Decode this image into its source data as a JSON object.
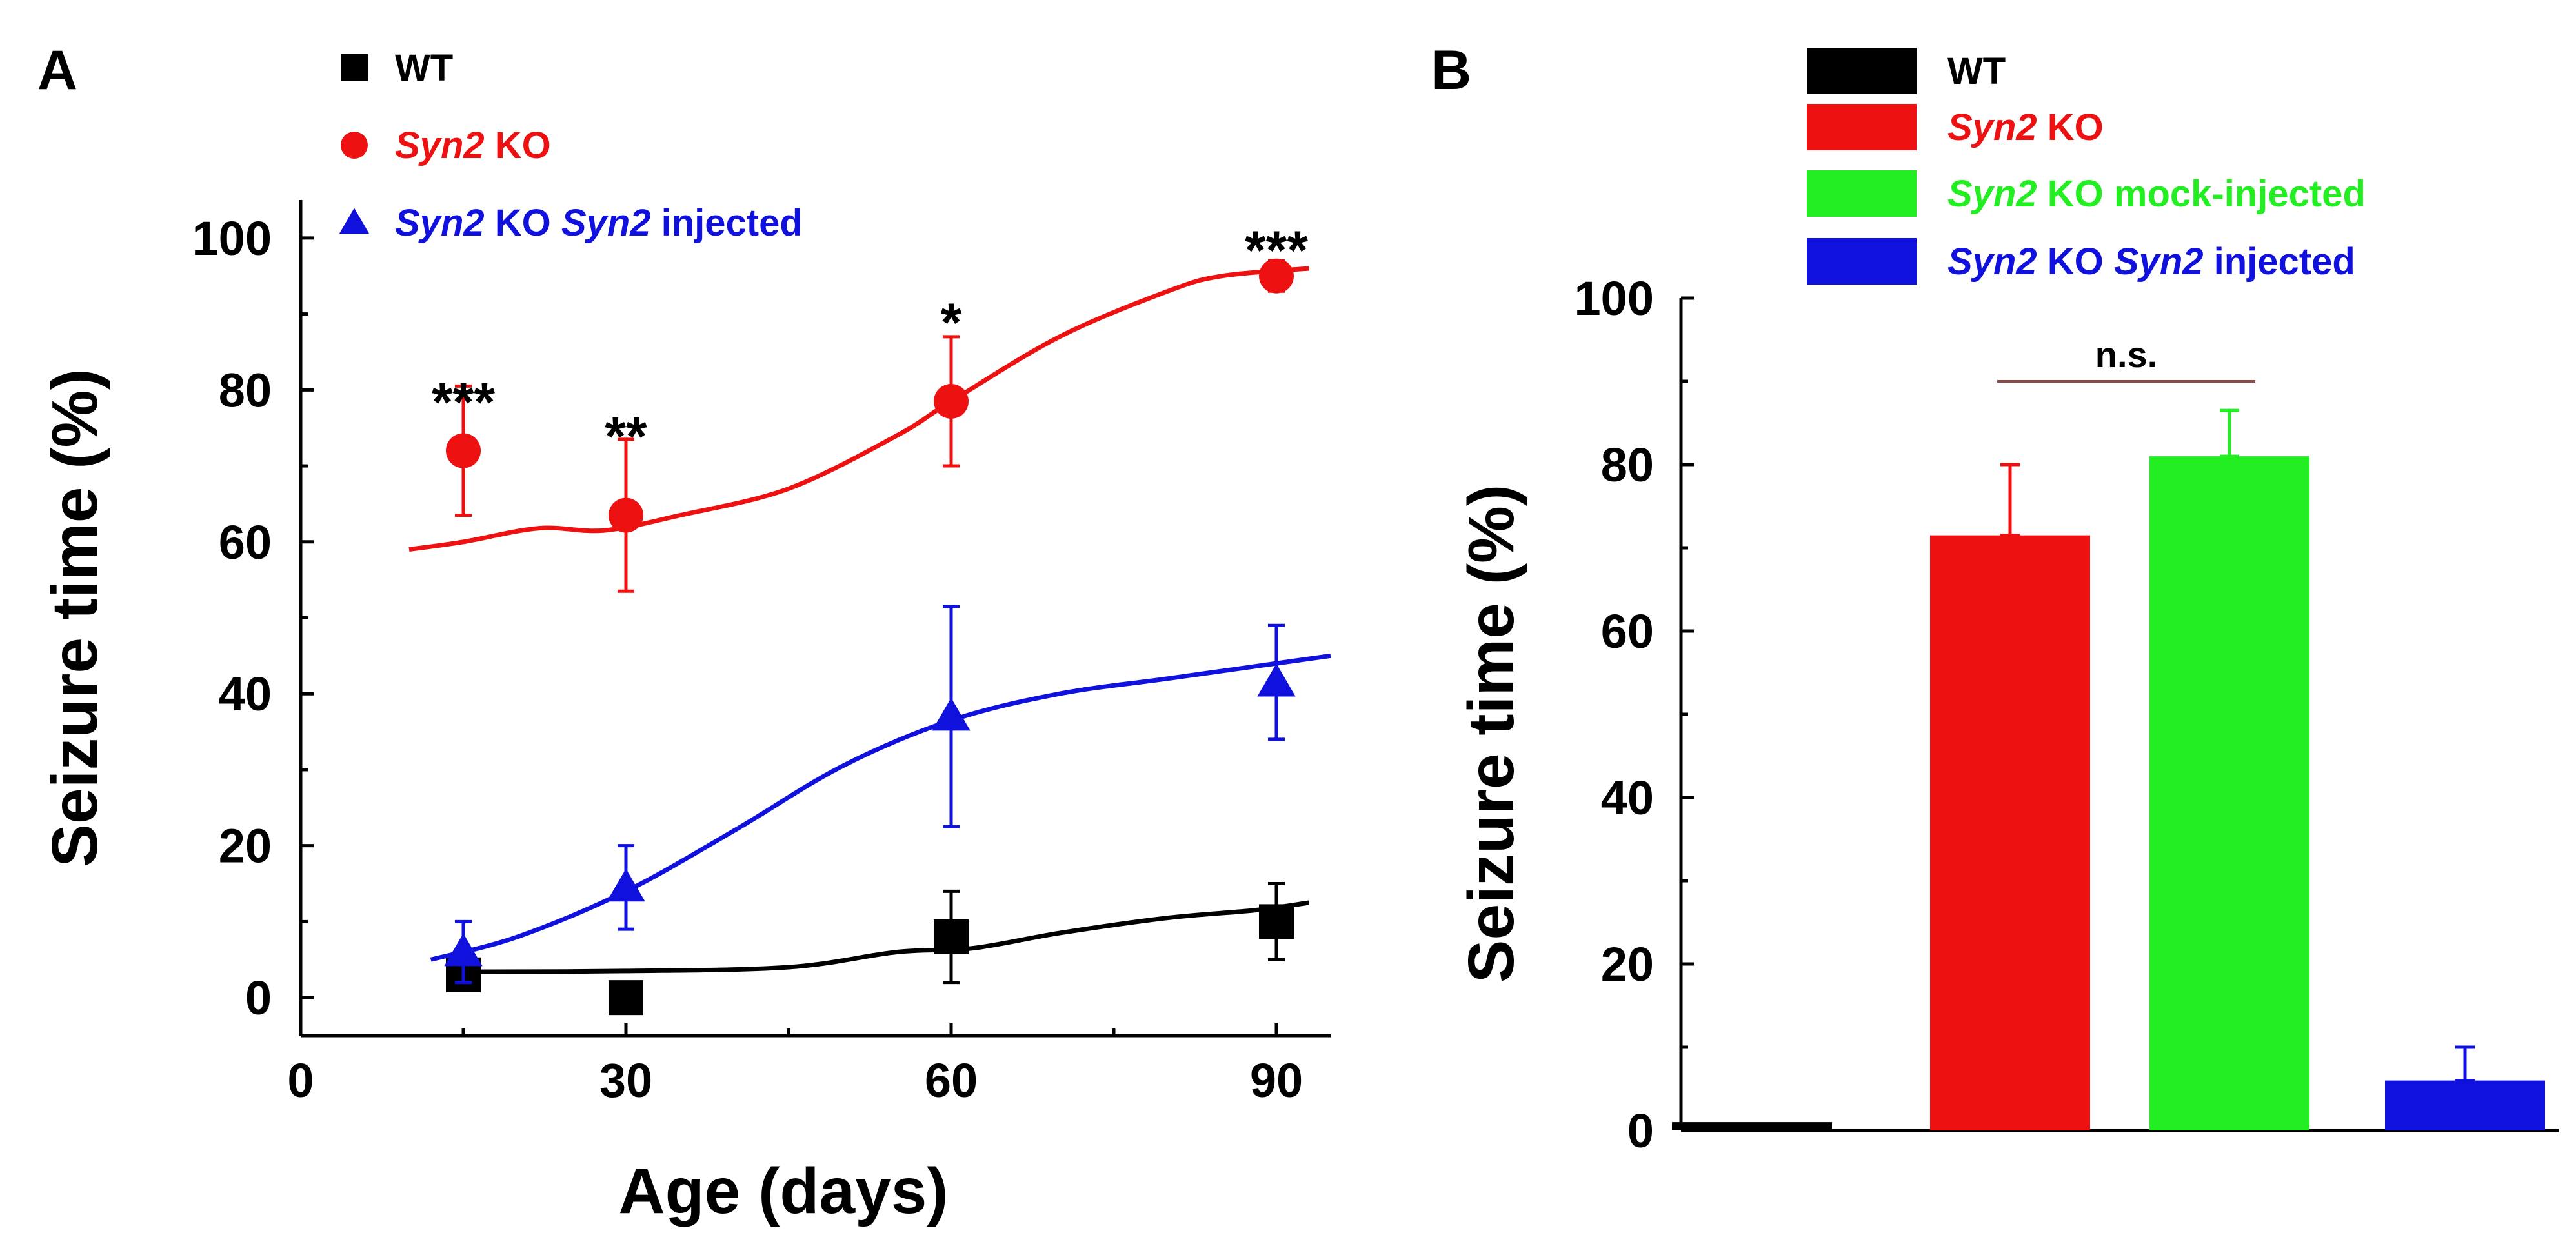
{
  "colors": {
    "wt": "#000000",
    "ko": "#ee1111",
    "mock": "#22ee22",
    "injected": "#1111dd",
    "ns_line": "#8b4a45"
  },
  "chart_data": [
    {
      "panel": "A",
      "type": "line",
      "xlabel": "Age (days)",
      "ylabel": "Seizure time (%)",
      "xlim": [
        0,
        95
      ],
      "ylim": [
        -5,
        105
      ],
      "xticks": [
        0,
        30,
        60,
        90
      ],
      "yticks": [
        0,
        20,
        40,
        60,
        80,
        100
      ],
      "grid": false,
      "legend_position": "top-left",
      "series": [
        {
          "key": "wt",
          "marker": "square",
          "label": [
            {
              "text": "WT",
              "italic": false
            }
          ],
          "points": [
            {
              "x": 15,
              "y": 3,
              "err": 0
            },
            {
              "x": 30,
              "y": 0,
              "err": 0
            },
            {
              "x": 60,
              "y": 8,
              "err": 6
            },
            {
              "x": 90,
              "y": 10,
              "err": 5
            }
          ],
          "fit": [
            [
              15,
              3.4
            ],
            [
              30,
              3.5
            ],
            [
              45,
              4
            ],
            [
              55,
              6
            ],
            [
              62,
              6.5
            ],
            [
              70,
              8.5
            ],
            [
              80,
              10.5
            ],
            [
              88,
              11.5
            ],
            [
              93,
              12.5
            ]
          ]
        },
        {
          "key": "ko",
          "marker": "circle",
          "label": [
            {
              "text": "Syn2",
              "italic": true
            },
            {
              "text": " KO",
              "italic": false
            }
          ],
          "points": [
            {
              "x": 15,
              "y": 72,
              "err": 8.5
            },
            {
              "x": 30,
              "y": 63.5,
              "err": 10
            },
            {
              "x": 60,
              "y": 78.5,
              "err": 8.5
            },
            {
              "x": 90,
              "y": 95,
              "err": 2
            }
          ],
          "fit": [
            [
              10,
              59
            ],
            [
              15,
              60
            ],
            [
              22,
              61.8
            ],
            [
              28,
              61.5
            ],
            [
              35,
              63.5
            ],
            [
              45,
              67
            ],
            [
              55,
              74
            ],
            [
              60,
              78.5
            ],
            [
              70,
              87
            ],
            [
              80,
              93
            ],
            [
              85,
              95
            ],
            [
              93,
              96
            ]
          ]
        },
        {
          "key": "injected",
          "marker": "triangle",
          "label": [
            {
              "text": "Syn2",
              "italic": true
            },
            {
              "text": " KO ",
              "italic": false
            },
            {
              "text": "Syn2",
              "italic": true
            },
            {
              "text": " injected",
              "italic": false
            }
          ],
          "points": [
            {
              "x": 15,
              "y": 6,
              "err": 4
            },
            {
              "x": 30,
              "y": 14.5,
              "err": 5.5
            },
            {
              "x": 60,
              "y": 37,
              "err": 14.5
            },
            {
              "x": 90,
              "y": 41.5,
              "err": 7.5
            }
          ],
          "fit": [
            [
              12,
              5
            ],
            [
              20,
              8
            ],
            [
              30,
              14
            ],
            [
              40,
              22
            ],
            [
              50,
              30.5
            ],
            [
              60,
              36.5
            ],
            [
              70,
              40
            ],
            [
              80,
              42
            ],
            [
              90,
              44
            ],
            [
              95,
              45
            ]
          ]
        }
      ],
      "annotations": [
        {
          "x": 15,
          "y": 78.5,
          "text": "***"
        },
        {
          "x": 30,
          "y": 74,
          "text": "**"
        },
        {
          "x": 60,
          "y": 89,
          "text": "*"
        },
        {
          "x": 90,
          "y": 98.5,
          "text": "***"
        }
      ]
    },
    {
      "panel": "B",
      "type": "bar",
      "ylabel": "Seizure time (%)",
      "ylim": [
        0,
        100
      ],
      "yticks": [
        0,
        20,
        40,
        60,
        80,
        100
      ],
      "grid": false,
      "legend_position": "top",
      "bars": [
        {
          "key": "wt",
          "label": [
            {
              "text": "WT",
              "italic": false
            }
          ],
          "value": 1,
          "err": 0
        },
        {
          "key": "ko",
          "label": [
            {
              "text": "Syn2",
              "italic": true
            },
            {
              "text": " KO",
              "italic": false
            }
          ],
          "value": 71.5,
          "err": 8.5
        },
        {
          "key": "mock",
          "label": [
            {
              "text": "Syn2",
              "italic": true
            },
            {
              "text": " KO mock-injected",
              "italic": false
            }
          ],
          "value": 81,
          "err": 5.5
        },
        {
          "key": "injected",
          "label": [
            {
              "text": "Syn2",
              "italic": true
            },
            {
              "text": " KO ",
              "italic": false
            },
            {
              "text": "Syn2",
              "italic": true
            },
            {
              "text": " injected",
              "italic": false
            }
          ],
          "value": 6,
          "err": 4
        }
      ],
      "annotations": [
        {
          "from": 1,
          "to": 2,
          "text": "n.s."
        }
      ]
    }
  ]
}
